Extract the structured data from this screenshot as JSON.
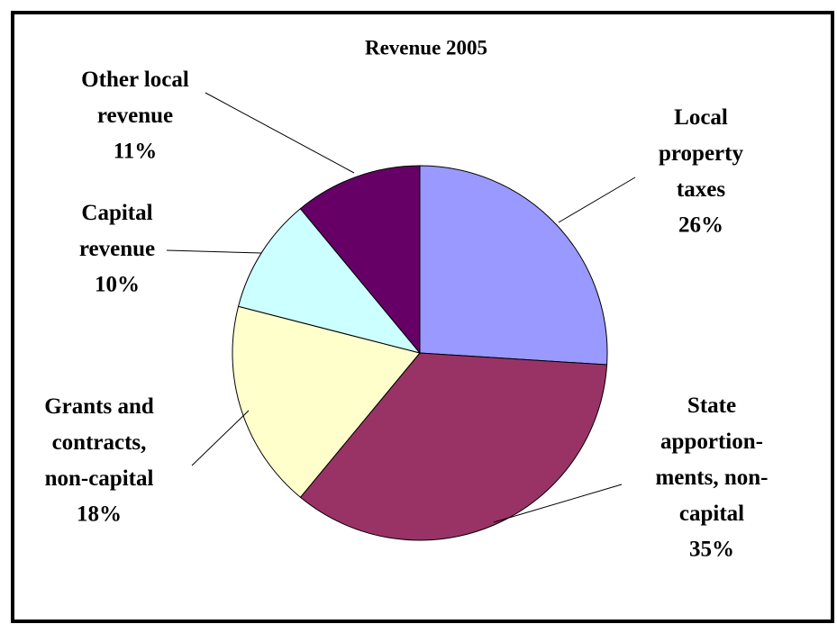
{
  "chart_data": {
    "type": "pie",
    "title": "Revenue 2005",
    "categories": [
      "Local property taxes",
      "State apportion-ments, non-capital",
      "Grants and contracts, non-capital",
      "Capital revenue",
      "Other local revenue"
    ],
    "values": [
      26,
      35,
      18,
      10,
      11
    ],
    "value_labels": [
      "26%",
      "35%",
      "18%",
      "10%",
      "11%"
    ],
    "colors": [
      "#9999ff",
      "#993366",
      "#ffffcc",
      "#ccffff",
      "#660066"
    ]
  }
}
